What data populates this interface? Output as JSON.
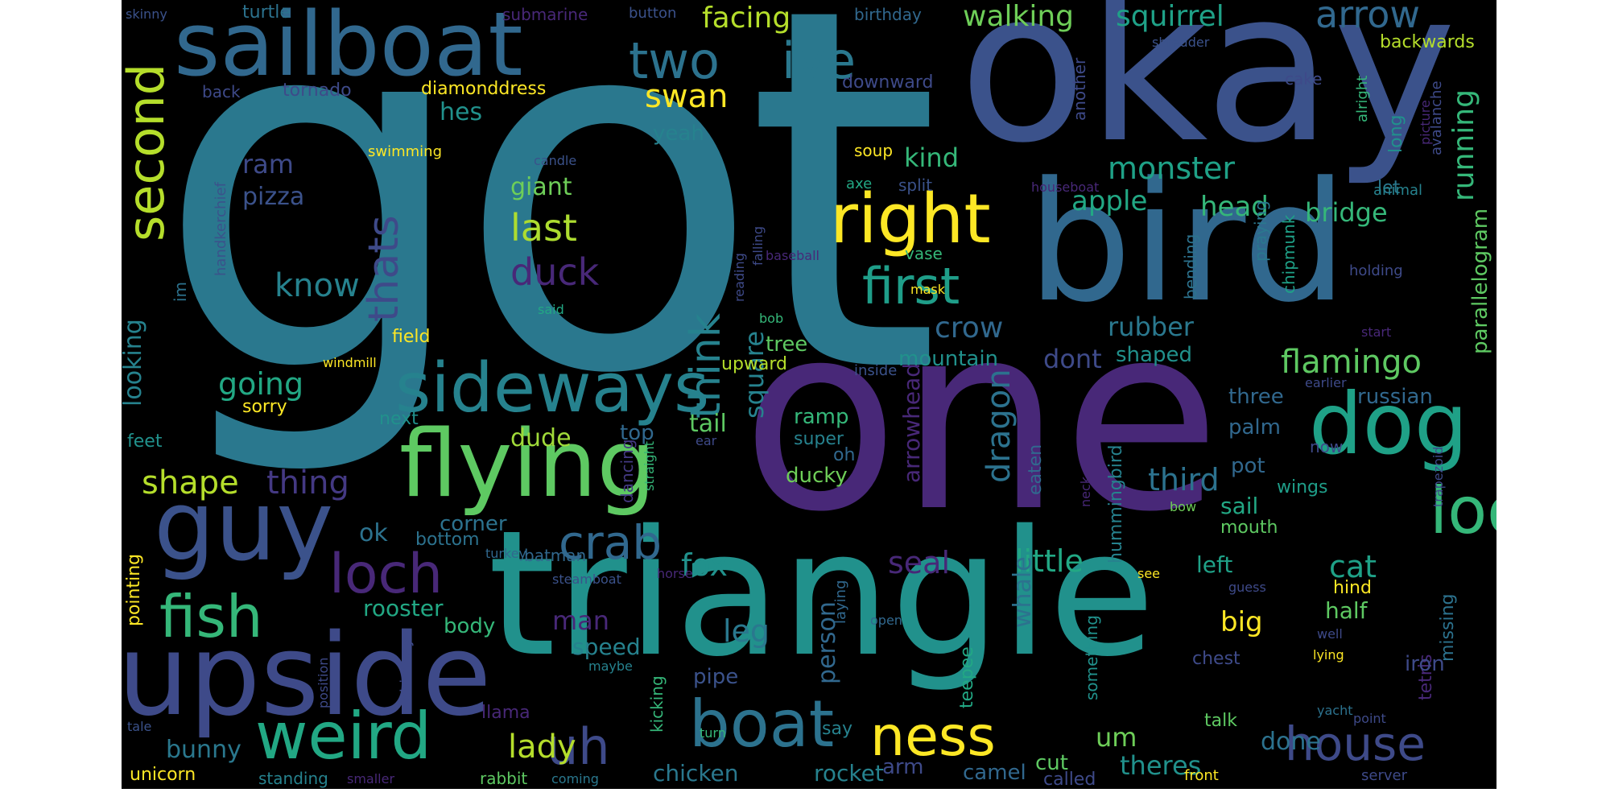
{
  "words": [
    {
      "text": "got",
      "color": "#2a788e"
    },
    {
      "text": "okay",
      "color": "#3b528b"
    },
    {
      "text": "one",
      "color": "#482878"
    },
    {
      "text": "triangle",
      "color": "#21918c"
    },
    {
      "text": "bird",
      "color": "#31688e"
    },
    {
      "text": "upside",
      "color": "#3e4a89"
    },
    {
      "text": "sailboat",
      "color": "#31688e"
    },
    {
      "text": "flying",
      "color": "#5ec962"
    },
    {
      "text": "guy",
      "color": "#3b528b"
    },
    {
      "text": "dog",
      "color": "#1fa187"
    },
    {
      "text": "right",
      "color": "#fde725"
    },
    {
      "text": "sideways",
      "color": "#26828e"
    },
    {
      "text": "weird",
      "color": "#22a884"
    },
    {
      "text": "boat",
      "color": "#2c728e"
    },
    {
      "text": "look",
      "color": "#35b779"
    },
    {
      "text": "fish",
      "color": "#35b779"
    },
    {
      "text": "ness",
      "color": "#fde725"
    },
    {
      "text": "loch",
      "color": "#482878"
    },
    {
      "text": "house",
      "color": "#3e4a89"
    },
    {
      "text": "first",
      "color": "#1f9e89"
    },
    {
      "text": "two",
      "color": "#2c728e"
    },
    {
      "text": "ive",
      "color": "#2a788e"
    },
    {
      "text": "second",
      "color": "#b5de2b"
    },
    {
      "text": "crab",
      "color": "#31688e"
    },
    {
      "text": "uh",
      "color": "#3e4a89"
    },
    {
      "text": "last",
      "color": "#addc30"
    },
    {
      "text": "duck",
      "color": "#482878"
    },
    {
      "text": "thats",
      "color": "#3e4a89"
    },
    {
      "text": "think",
      "color": "#26828e"
    },
    {
      "text": "swan",
      "color": "#fde725"
    },
    {
      "text": "walking",
      "color": "#6ece58"
    },
    {
      "text": "squirrel",
      "color": "#1fa187"
    },
    {
      "text": "arrow",
      "color": "#31688e"
    },
    {
      "text": "facing",
      "color": "#b5de2b"
    },
    {
      "text": "running",
      "color": "#35b779"
    },
    {
      "text": "monster",
      "color": "#1fa187"
    },
    {
      "text": "flamingo",
      "color": "#5ec962"
    },
    {
      "text": "apple",
      "color": "#22a884"
    },
    {
      "text": "head",
      "color": "#35b779"
    },
    {
      "text": "bridge",
      "color": "#35b779"
    },
    {
      "text": "know",
      "color": "#26828e"
    },
    {
      "text": "going",
      "color": "#22a884"
    },
    {
      "text": "shape",
      "color": "#b5de2b"
    },
    {
      "text": "thing",
      "color": "#443983"
    },
    {
      "text": "dragon",
      "color": "#2c728e"
    },
    {
      "text": "little",
      "color": "#22a884"
    },
    {
      "text": "third",
      "color": "#2c728e"
    },
    {
      "text": "cat",
      "color": "#1fa187"
    },
    {
      "text": "fox",
      "color": "#21918c"
    },
    {
      "text": "seal",
      "color": "#482878"
    },
    {
      "text": "lady",
      "color": "#b5de2b"
    },
    {
      "text": "leg",
      "color": "#2a788e"
    },
    {
      "text": "man",
      "color": "#482878"
    },
    {
      "text": "crow",
      "color": "#31688e"
    },
    {
      "text": "dont",
      "color": "#3e4a89"
    },
    {
      "text": "kind",
      "color": "#35b779"
    },
    {
      "text": "square",
      "color": "#26828e"
    },
    {
      "text": "looking",
      "color": "#26828e"
    },
    {
      "text": "rubber",
      "color": "#2a788e"
    },
    {
      "text": "giant",
      "color": "#6ece58"
    },
    {
      "text": "ram",
      "color": "#3e4a89"
    },
    {
      "text": "pizza",
      "color": "#3b528b"
    },
    {
      "text": "hes",
      "color": "#21918c"
    },
    {
      "text": "yeah",
      "color": "#26828e"
    },
    {
      "text": "tail",
      "color": "#5ec962"
    },
    {
      "text": "dude",
      "color": "#a0da39"
    },
    {
      "text": "ok",
      "color": "#2c728e"
    },
    {
      "text": "rooster",
      "color": "#22a884"
    },
    {
      "text": "bunny",
      "color": "#2a788e"
    },
    {
      "text": "unicorn",
      "color": "#fde725"
    },
    {
      "text": "speed",
      "color": "#26828e"
    },
    {
      "text": "pipe",
      "color": "#3b528b"
    },
    {
      "text": "body",
      "color": "#35b779"
    },
    {
      "text": "person",
      "color": "#31688e"
    },
    {
      "text": "chicken",
      "color": "#2a788e"
    },
    {
      "text": "rocket",
      "color": "#26828e"
    },
    {
      "text": "sail",
      "color": "#22a884"
    },
    {
      "text": "left",
      "color": "#1fa187"
    },
    {
      "text": "half",
      "color": "#5ec962"
    },
    {
      "text": "big",
      "color": "#fde725"
    },
    {
      "text": "theres",
      "color": "#21918c"
    },
    {
      "text": "um",
      "color": "#6ece58"
    },
    {
      "text": "done",
      "color": "#2c728e"
    },
    {
      "text": "mountain",
      "color": "#21918c"
    },
    {
      "text": "shaped",
      "color": "#21918c"
    },
    {
      "text": "three",
      "color": "#31688e"
    },
    {
      "text": "russian",
      "color": "#31688e"
    },
    {
      "text": "palm",
      "color": "#31688e"
    },
    {
      "text": "tree",
      "color": "#5ec962"
    },
    {
      "text": "upward",
      "color": "#b5de2b"
    },
    {
      "text": "next",
      "color": "#21918c"
    },
    {
      "text": "top",
      "color": "#31688e"
    },
    {
      "text": "corner",
      "color": "#2c728e"
    },
    {
      "text": "bottom",
      "color": "#2c728e"
    },
    {
      "text": "ramp",
      "color": "#35b779"
    },
    {
      "text": "super",
      "color": "#26828e"
    },
    {
      "text": "ducky",
      "color": "#6ece58"
    },
    {
      "text": "oh",
      "color": "#31688e"
    },
    {
      "text": "arm",
      "color": "#3e4a89"
    },
    {
      "text": "camel",
      "color": "#31688e"
    },
    {
      "text": "cut",
      "color": "#5ec962"
    },
    {
      "text": "called",
      "color": "#3e4a89"
    },
    {
      "text": "wings",
      "color": "#1f9e89"
    },
    {
      "text": "pot",
      "color": "#31688e"
    },
    {
      "text": "mouth",
      "color": "#5ec962"
    },
    {
      "text": "hind",
      "color": "#fde725"
    },
    {
      "text": "chest",
      "color": "#3e4a89"
    },
    {
      "text": "talk",
      "color": "#5ec962"
    },
    {
      "text": "field",
      "color": "#fde725"
    },
    {
      "text": "feet",
      "color": "#21918c"
    },
    {
      "text": "sorry",
      "color": "#fde725"
    },
    {
      "text": "swimming",
      "color": "#fde725"
    },
    {
      "text": "diamonddress",
      "color": "#fde725"
    },
    {
      "text": "tornado",
      "color": "#3e4a89"
    },
    {
      "text": "back",
      "color": "#3e4a89"
    },
    {
      "text": "turtle",
      "color": "#2c728e"
    },
    {
      "text": "skinny",
      "color": "#3b528b"
    },
    {
      "text": "submarine",
      "color": "#482878"
    },
    {
      "text": "button",
      "color": "#3b528b"
    },
    {
      "text": "birthday",
      "color": "#31688e"
    },
    {
      "text": "shredder",
      "color": "#3b528b"
    },
    {
      "text": "backwards",
      "color": "#b5de2b"
    },
    {
      "text": "downward",
      "color": "#3e4a89"
    },
    {
      "text": "another",
      "color": "#3e4a89"
    },
    {
      "text": "cake",
      "color": "#3e4a89"
    },
    {
      "text": "alright",
      "color": "#35b779"
    },
    {
      "text": "long",
      "color": "#21918c"
    },
    {
      "text": "picture",
      "color": "#482878"
    },
    {
      "text": "avalanche",
      "color": "#3e4a89"
    },
    {
      "text": "soup",
      "color": "#fde725"
    },
    {
      "text": "axe",
      "color": "#22a884"
    },
    {
      "text": "split",
      "color": "#3b528b"
    },
    {
      "text": "candle",
      "color": "#3b528b"
    },
    {
      "text": "vase",
      "color": "#35b779"
    },
    {
      "text": "houseboat",
      "color": "#482878"
    },
    {
      "text": "let",
      "color": "#2a788e"
    },
    {
      "text": "animal",
      "color": "#26828e"
    },
    {
      "text": "handkerchief",
      "color": "#3b528b"
    },
    {
      "text": "im",
      "color": "#2c728e"
    },
    {
      "text": "said",
      "color": "#22a884"
    },
    {
      "text": "bob",
      "color": "#35b779"
    },
    {
      "text": "mask",
      "color": "#fde725"
    },
    {
      "text": "baseball",
      "color": "#482878"
    },
    {
      "text": "reading",
      "color": "#3e4a89"
    },
    {
      "text": "falling",
      "color": "#3e4a89"
    },
    {
      "text": "praying",
      "color": "#2a788e"
    },
    {
      "text": "chipmunk",
      "color": "#1fa187"
    },
    {
      "text": "bending",
      "color": "#2c728e"
    },
    {
      "text": "holding",
      "color": "#3e4a89"
    },
    {
      "text": "parallelogram",
      "color": "#5ec962"
    },
    {
      "text": "start",
      "color": "#482878"
    },
    {
      "text": "windmill",
      "color": "#fde725"
    },
    {
      "text": "inside",
      "color": "#3b528b"
    },
    {
      "text": "arrowhead",
      "color": "#482878"
    },
    {
      "text": "earlier",
      "color": "#3e4a89"
    },
    {
      "text": "now",
      "color": "#3e4a89"
    },
    {
      "text": "ear",
      "color": "#3e4a89"
    },
    {
      "text": "straight",
      "color": "#35b779"
    },
    {
      "text": "dancing",
      "color": "#443983"
    },
    {
      "text": "eaten",
      "color": "#31688e"
    },
    {
      "text": "hummingbird",
      "color": "#26828e"
    },
    {
      "text": "whale",
      "color": "#2c728e"
    },
    {
      "text": "neck",
      "color": "#482878"
    },
    {
      "text": "bow",
      "color": "#6ece58"
    },
    {
      "text": "trapezoid",
      "color": "#3e4a89"
    },
    {
      "text": "tetris",
      "color": "#482878"
    },
    {
      "text": "missing",
      "color": "#2c728e"
    },
    {
      "text": "batman",
      "color": "#31688e"
    },
    {
      "text": "turkey",
      "color": "#31688e"
    },
    {
      "text": "pointing",
      "color": "#fde725"
    },
    {
      "text": "steamboat",
      "color": "#3b528b"
    },
    {
      "text": "horse",
      "color": "#482878"
    },
    {
      "text": "laying",
      "color": "#31688e"
    },
    {
      "text": "see",
      "color": "#fde725"
    },
    {
      "text": "guess",
      "color": "#3e4a89"
    },
    {
      "text": "well",
      "color": "#3e4a89"
    },
    {
      "text": "open",
      "color": "#31688e"
    },
    {
      "text": "teepee",
      "color": "#22a884"
    },
    {
      "text": "something",
      "color": "#21918c"
    },
    {
      "text": "kicking",
      "color": "#35b779"
    },
    {
      "text": "maybe",
      "color": "#26828e"
    },
    {
      "text": "say",
      "color": "#26828e"
    },
    {
      "text": "position",
      "color": "#3e4a89"
    },
    {
      "text": "chimney",
      "color": "#3e4a89"
    },
    {
      "text": "iron",
      "color": "#3e4a89"
    },
    {
      "text": "lying",
      "color": "#fde725"
    },
    {
      "text": "llama",
      "color": "#482878"
    },
    {
      "text": "yacht",
      "color": "#2c728e"
    },
    {
      "text": "point",
      "color": "#3e4a89"
    },
    {
      "text": "turn",
      "color": "#35b779"
    },
    {
      "text": "tale",
      "color": "#3b528b"
    },
    {
      "text": "standing",
      "color": "#26828e"
    },
    {
      "text": "smaller",
      "color": "#482878"
    },
    {
      "text": "rabbit",
      "color": "#5ec962"
    },
    {
      "text": "coming",
      "color": "#2a788e"
    },
    {
      "text": "front",
      "color": "#fde725"
    },
    {
      "text": "server",
      "color": "#3e4a89"
    }
  ]
}
